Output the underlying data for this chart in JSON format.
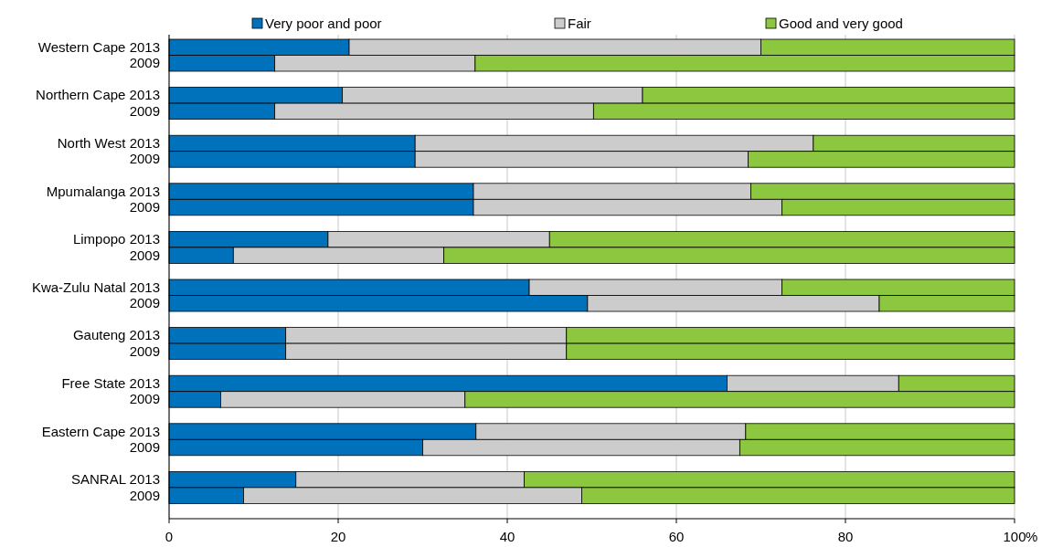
{
  "chart_data": {
    "type": "bar",
    "orientation": "horizontal",
    "stacked": true,
    "xlabel": "%",
    "categories": [
      "Western Cape 2013",
      "2009",
      "Northern Cape 2013",
      "2009",
      "North West 2013",
      "2009",
      "Mpumalanga 2013",
      "2009",
      "Limpopo 2013",
      "2009",
      "Kwa-Zulu Natal 2013",
      "2009",
      "Gauteng 2013",
      "2009",
      "Free State 2013",
      "2009",
      "Eastern Cape 2013",
      "2009",
      "SANRAL 2013",
      "2009"
    ],
    "series": [
      {
        "name": "Very poor and poor",
        "color": "#0072bc",
        "values": [
          21.3,
          12.5,
          20.5,
          12.5,
          29.1,
          29.1,
          36.0,
          36.0,
          18.8,
          7.6,
          42.6,
          49.5,
          13.8,
          13.8,
          66.0,
          6.1,
          36.3,
          30.0,
          15.0,
          8.8
        ]
      },
      {
        "name": "Fair",
        "color": "#cccccc",
        "values": [
          48.7,
          23.7,
          35.5,
          37.7,
          47.1,
          39.4,
          32.8,
          36.5,
          26.2,
          24.9,
          29.9,
          34.5,
          33.2,
          33.2,
          20.3,
          28.9,
          31.9,
          37.5,
          27.0,
          40.0
        ]
      },
      {
        "name": "Good and very good",
        "color": "#8dc63f",
        "values": [
          30.0,
          63.8,
          44.0,
          49.8,
          23.8,
          31.5,
          31.2,
          27.5,
          55.0,
          67.5,
          27.5,
          16.0,
          53.0,
          53.0,
          13.7,
          65.0,
          31.8,
          32.5,
          58.0,
          51.2
        ]
      }
    ],
    "xlim": [
      0,
      100
    ],
    "xticks": [
      0,
      20,
      40,
      60,
      80,
      100
    ],
    "grid": "x",
    "legend": "top"
  }
}
